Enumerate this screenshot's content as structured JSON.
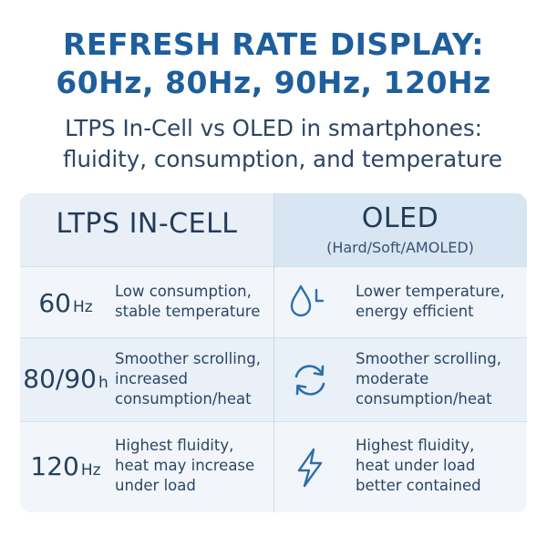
{
  "title": {
    "line1": "REFRESH RATE DISPLAY:",
    "line2": "60Hz, 80Hz, 90Hz, 120Hz"
  },
  "subtitle": {
    "line1": "LTPS In-Cell vs OLED in smartphones:",
    "line2": "fluidity, consumption, and temperature"
  },
  "columns": {
    "left": {
      "title": "LTPS IN-CELL"
    },
    "right": {
      "title": "OLED",
      "subtitle": "(Hard/Soft/AMOLED)"
    }
  },
  "rows": [
    {
      "rate": "60",
      "unit": "Hz",
      "ltps": [
        "Low consumption,",
        "stable temperature"
      ],
      "icon": "droplet-l-icon",
      "oled": [
        "Lower temperature,",
        "energy efficient"
      ]
    },
    {
      "rate": "80/90",
      "unit": "h",
      "ltps": [
        "Smoother scrolling,",
        "increased",
        "consumption/heat"
      ],
      "icon": "refresh-arrows-icon",
      "oled": [
        "Smoother scrolling,",
        "moderate",
        "consumption/heat"
      ]
    },
    {
      "rate": "120",
      "unit": "Hz",
      "ltps": [
        "Highest fluidity,",
        "heat may increase",
        "under load"
      ],
      "icon": "lightning-bolt-icon",
      "oled": [
        "Highest fluidity,",
        "heat under load",
        "better contained"
      ]
    }
  ],
  "colors": {
    "title": "#1e5e9c",
    "text": "#2c4563",
    "icon": "#2f6ea8",
    "header_left_bg": "#e8eff7",
    "header_right_bg": "#d8e6f4",
    "row_bg": "#f2f6fb"
  }
}
